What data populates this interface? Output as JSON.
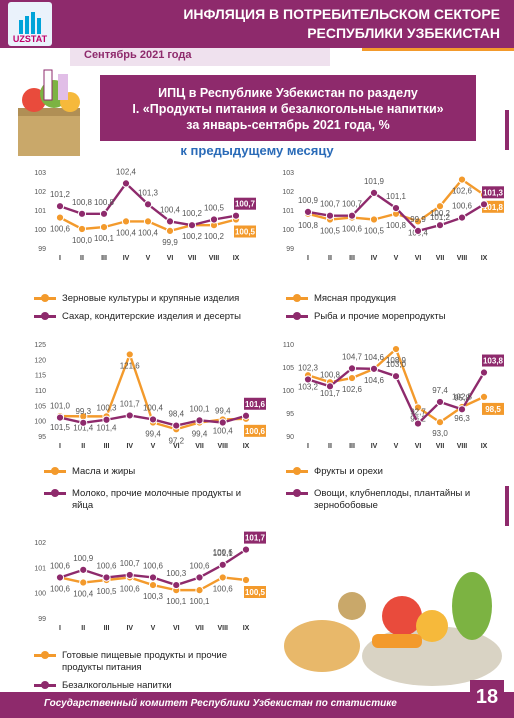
{
  "header": {
    "title_line1": "ИНФЛЯЦИЯ В ПОТРЕБИТЕЛЬСКОМ СЕКТОРЕ",
    "title_line2": "РЕСПУБЛИКИ УЗБЕКИСТАН",
    "logo_text": "UZSTAT"
  },
  "date_band": "Сентябрь 2021 года",
  "banner": {
    "line1": "ИПЦ в Республике Узбекистан по разделу",
    "line2": "I. «Продукты питания и безалкогольные напитки»",
    "line3": "за январь-сентябрь 2021 года, %"
  },
  "subtitle": "к предыдущему месяцу",
  "footer": "Государственный комитет Республики Узбекистан по статистике",
  "page_number": "18",
  "colors": {
    "orange": "#f39a2c",
    "purple": "#8e2a6c"
  },
  "chart_data": [
    {
      "type": "line",
      "x": [
        "I",
        "II",
        "III",
        "IV",
        "V",
        "VI",
        "VII",
        "VIII",
        "IX"
      ],
      "yticks": [
        99,
        100,
        101,
        102,
        103
      ],
      "ylim": [
        99,
        103
      ],
      "series": [
        {
          "name": "Зерновые культуры и крупяные изделия",
          "color": "#f39a2c",
          "values": [
            100.6,
            100.0,
            100.1,
            100.4,
            100.4,
            99.9,
            100.2,
            100.2,
            100.5
          ],
          "labels": [
            "100,6",
            "100,0",
            "100,1",
            "100,4",
            "100,4",
            "99,9",
            "100,2",
            "100,2",
            "100,5"
          ]
        },
        {
          "name": "Сахар, кондитерские изделия и десерты",
          "color": "#8e2a6c",
          "values": [
            101.2,
            100.8,
            100.8,
            102.4,
            101.3,
            100.4,
            100.2,
            100.5,
            100.7
          ],
          "labels": [
            "101,2",
            "100,8",
            "100,8",
            "102,4",
            "101,3",
            "100,4",
            "100,2",
            "100,5",
            "100,7"
          ]
        }
      ]
    },
    {
      "type": "line",
      "x": [
        "I",
        "II",
        "III",
        "IV",
        "V",
        "VI",
        "VII",
        "VIII",
        "IX"
      ],
      "yticks": [
        99,
        100,
        101,
        102,
        103
      ],
      "ylim": [
        99,
        103
      ],
      "series": [
        {
          "name": "Мясная продукция",
          "color": "#f39a2c",
          "values": [
            100.8,
            100.5,
            100.6,
            100.5,
            100.8,
            100.4,
            101.2,
            102.6,
            101.8
          ],
          "labels": [
            "100,8",
            "100,5",
            "100,6",
            "100,5",
            "100,8",
            "100,4",
            "101,2",
            "102,6",
            "101,8"
          ]
        },
        {
          "name": "Рыба и прочие морепродукты",
          "color": "#8e2a6c",
          "values": [
            100.9,
            100.7,
            100.7,
            101.9,
            101.1,
            99.9,
            100.2,
            100.6,
            101.3
          ],
          "labels": [
            "100,9",
            "100,7",
            "100,7",
            "101,9",
            "101,1",
            "99,9",
            "100,2",
            "100,6",
            "101,3"
          ]
        }
      ]
    },
    {
      "type": "line",
      "x": [
        "I",
        "II",
        "III",
        "IV",
        "V",
        "VI",
        "VII",
        "VIII",
        "IX"
      ],
      "yticks": [
        95,
        100,
        105,
        110,
        115,
        120,
        125
      ],
      "ylim": [
        95,
        125
      ],
      "series": [
        {
          "name": "Масла и жиры",
          "color": "#f39a2c",
          "values": [
            101.5,
            101.4,
            101.4,
            121.6,
            99.4,
            97.2,
            99.4,
            100.4,
            100.6
          ],
          "labels": [
            "101,5",
            "101,4",
            "101,4",
            "121,6",
            "99,4",
            "97,2",
            "99,4",
            "100,4",
            "100,6"
          ]
        },
        {
          "name": "Молоко, прочие молочные продукты и яйца",
          "color": "#8e2a6c",
          "values": [
            101.0,
            99.3,
            100.3,
            101.7,
            100.4,
            98.4,
            100.1,
            99.4,
            101.6
          ],
          "labels": [
            "101,0",
            "99,3",
            "100,3",
            "101,7",
            "100,4",
            "98,4",
            "100,1",
            "99,4",
            "101,6"
          ]
        }
      ]
    },
    {
      "type": "line",
      "x": [
        "I",
        "II",
        "III",
        "IV",
        "V",
        "VI",
        "VII",
        "VIII",
        "IX"
      ],
      "yticks": [
        90,
        95,
        100,
        105,
        110
      ],
      "ylim": [
        90,
        110
      ],
      "series": [
        {
          "name": "Фрукты и орехи",
          "color": "#f39a2c",
          "values": [
            103.2,
            101.7,
            102.6,
            104.6,
            108.9,
            96.2,
            93.0,
            96.3,
            98.5
          ],
          "labels": [
            "103,2",
            "101,7",
            "102,6",
            "104,6",
            "108,9",
            "96,2",
            "93,0",
            "96,3",
            "98,5"
          ]
        },
        {
          "name": "Овощи, клубнеплоды, плантайны и зернобобовые",
          "color": "#8e2a6c",
          "values": [
            102.3,
            100.8,
            104.7,
            104.6,
            103.0,
            92.7,
            97.4,
            95.8,
            103.8
          ],
          "labels": [
            "102,3",
            "100,8",
            "104,7",
            "104,6",
            "103,0",
            "92,7",
            "97,4",
            "95,8",
            "103,8"
          ],
          "extra_label": "102,5"
        }
      ]
    },
    {
      "type": "line",
      "x": [
        "I",
        "II",
        "III",
        "IV",
        "V",
        "VI",
        "VII",
        "VIII",
        "IX"
      ],
      "yticks": [
        99,
        100,
        101,
        102
      ],
      "ylim": [
        99,
        102
      ],
      "series": [
        {
          "name": "Готовые пищевые продукты и прочие продукты питания",
          "color": "#f39a2c",
          "values": [
            100.6,
            100.4,
            100.5,
            100.6,
            100.3,
            100.1,
            100.1,
            100.6,
            100.5
          ],
          "labels": [
            "100,6",
            "100,4",
            "100,5",
            "100,6",
            "100,3",
            "100,1",
            "100,1",
            "100,6",
            "100,5"
          ]
        },
        {
          "name": "Безалкогольные напитки",
          "color": "#8e2a6c",
          "values": [
            100.6,
            100.9,
            100.6,
            100.7,
            100.6,
            100.3,
            100.6,
            101.1,
            101.7
          ],
          "labels": [
            "100,6",
            "100,9",
            "100,6",
            "100,7",
            "100,6",
            "100,3",
            "100,6",
            "101,1",
            "101,7"
          ],
          "extra_label": "100,6"
        }
      ]
    }
  ]
}
